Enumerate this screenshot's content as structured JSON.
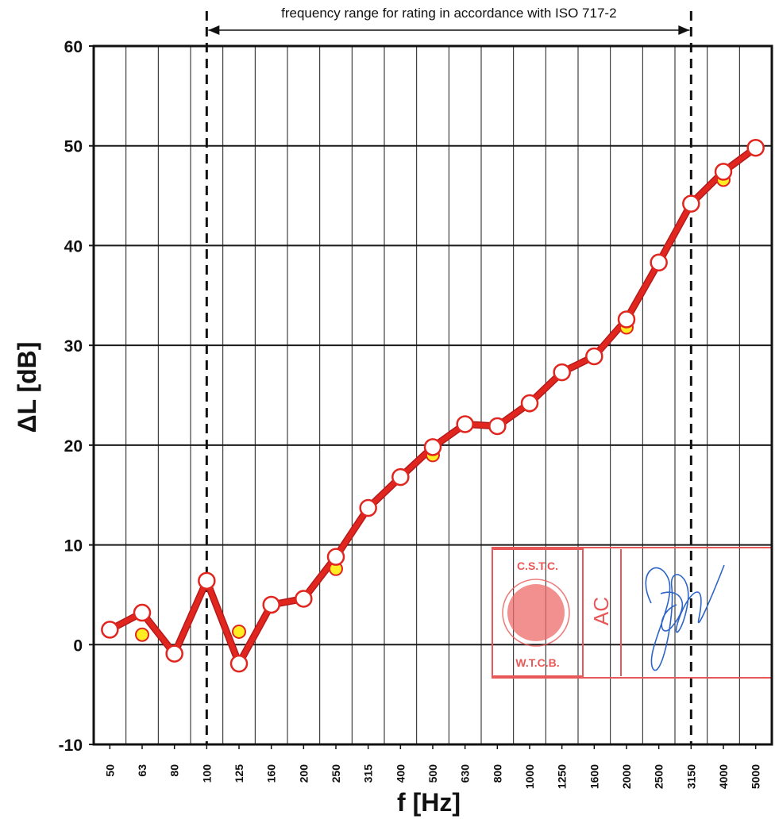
{
  "chart_data": {
    "type": "line",
    "title": "",
    "xlabel": "f [Hz]",
    "ylabel": "ΔL [dB]",
    "ylim": [
      -10,
      60
    ],
    "yticks": [
      "-10",
      "0",
      "10",
      "20",
      "30",
      "40",
      "50",
      "60"
    ],
    "grid": true,
    "categories": [
      "50",
      "63",
      "80",
      "100",
      "125",
      "160",
      "200",
      "250",
      "315",
      "400",
      "500",
      "630",
      "800",
      "1000",
      "1250",
      "1600",
      "2000",
      "2500",
      "3150",
      "4000",
      "5000"
    ],
    "series": [
      {
        "values": [
          1.5,
          3.2,
          -0.9,
          6.4,
          -1.9,
          4.0,
          4.6,
          8.8,
          13.7,
          16.8,
          19.8,
          22.1,
          21.9,
          24.2,
          27.3,
          28.9,
          32.6,
          38.3,
          44.2,
          47.4,
          49.8
        ]
      },
      {
        "x": [
          "63",
          "125",
          "250",
          "500",
          "1000",
          "2000",
          "4000"
        ],
        "values": [
          1.0,
          1.3,
          7.6,
          19.0,
          24.0,
          31.8,
          46.6
        ]
      }
    ],
    "annotations": [
      {
        "text": "frequency range for rating in accordance with ISO 717-2",
        "from": "100",
        "to": "3150"
      }
    ],
    "colors": {
      "line": "#e0261f",
      "outline": "#b51a1a",
      "marker_fill": "#ffffff",
      "marker_fill_secondary": "#ffee22",
      "grid": "#1a1a1a",
      "stamp": "#e85858",
      "signature": "#2e64c8"
    }
  },
  "stamp": {
    "top_text": "C.S.T.C.",
    "bottom_text": "W.T.C.B.",
    "initials": "AC"
  }
}
